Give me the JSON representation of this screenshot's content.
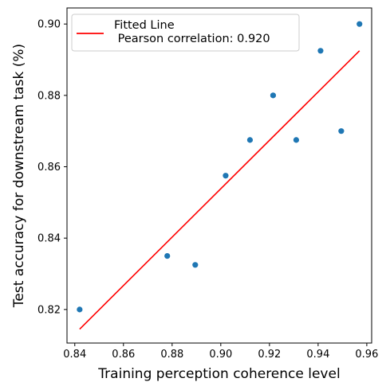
{
  "chart_data": {
    "type": "scatter",
    "xlabel": "Training perception coherence level",
    "ylabel": "Test accuracy for downstream task (%)",
    "xlim": [
      0.8368,
      0.962
    ],
    "ylim": [
      0.8106,
      0.9045
    ],
    "xticks": [
      0.84,
      0.86,
      0.88,
      0.9,
      0.92,
      0.94,
      0.96
    ],
    "xtick_labels": [
      "0.84",
      "0.86",
      "0.88",
      "0.90",
      "0.92",
      "0.94",
      "0.96"
    ],
    "yticks": [
      0.82,
      0.84,
      0.86,
      0.88,
      0.9
    ],
    "ytick_labels": [
      "0.82",
      "0.84",
      "0.86",
      "0.88",
      "0.90"
    ],
    "grid": false,
    "legend_position": "top-left",
    "series": [
      {
        "kind": "scatter",
        "color": "#1f77b4",
        "points": [
          {
            "x": 0.842,
            "y": 0.82
          },
          {
            "x": 0.878,
            "y": 0.835
          },
          {
            "x": 0.8895,
            "y": 0.8325
          },
          {
            "x": 0.902,
            "y": 0.8575
          },
          {
            "x": 0.912,
            "y": 0.8675
          },
          {
            "x": 0.9215,
            "y": 0.88
          },
          {
            "x": 0.931,
            "y": 0.8675
          },
          {
            "x": 0.941,
            "y": 0.8925
          },
          {
            "x": 0.9495,
            "y": 0.87
          },
          {
            "x": 0.957,
            "y": 0.9
          }
        ]
      },
      {
        "kind": "line",
        "name": "Fitted Line\n Pearson correlation: 0.920",
        "color": "#ff0000",
        "points": [
          {
            "x": 0.842,
            "y": 0.8145
          },
          {
            "x": 0.957,
            "y": 0.8925
          }
        ]
      }
    ],
    "legend": {
      "line1": "Fitted Line",
      "line2": " Pearson correlation: 0.920"
    }
  }
}
